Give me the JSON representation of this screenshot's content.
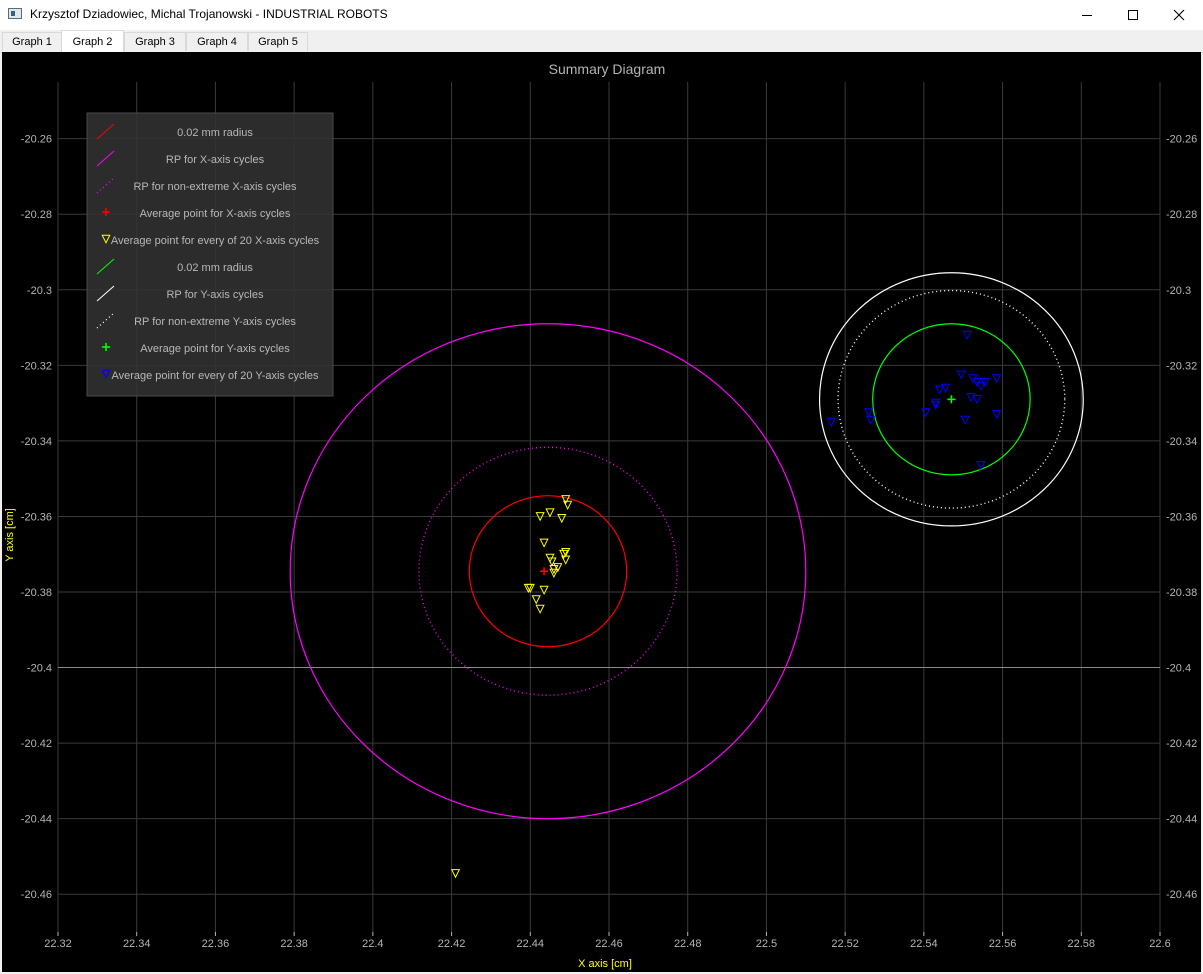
{
  "window": {
    "title": "Krzysztof Dziadowiec, Michal Trojanowski - INDUSTRIAL ROBOTS",
    "minimize_icon": "minimize-icon",
    "maximize_icon": "maximize-icon",
    "close_icon": "close-icon"
  },
  "tabs": [
    {
      "label": "Graph 1",
      "active": false
    },
    {
      "label": "Graph 2",
      "active": true
    },
    {
      "label": "Graph 3",
      "active": false
    },
    {
      "label": "Graph 4",
      "active": false
    },
    {
      "label": "Graph 5",
      "active": false
    }
  ],
  "chart_data": {
    "type": "scatter",
    "title": "Summary Diagram",
    "xlabel": "X axis [cm]",
    "ylabel": "Y axis [cm]",
    "xlim": [
      22.32,
      22.6
    ],
    "ylim": [
      -20.47,
      -20.245
    ],
    "x_ticks": [
      "22.32",
      "22.34",
      "22.36",
      "22.38",
      "22.4",
      "22.42",
      "22.44",
      "22.46",
      "22.48",
      "22.5",
      "22.52",
      "22.54",
      "22.56",
      "22.58",
      "22.6"
    ],
    "y_ticks": [
      "-20.26",
      "-20.28",
      "-20.3",
      "-20.32",
      "-20.34",
      "-20.36",
      "-20.38",
      "-20.4",
      "-20.42",
      "-20.44",
      "-20.46"
    ],
    "grid": true,
    "legend_position": "top-left",
    "background": "#000000",
    "colors": {
      "grid": "#3a3a3a",
      "grid_major_line": "#8a8a8a",
      "axis_text": "#b4b4b4",
      "axis_label": "#ffff00",
      "legend_bg": "#323232",
      "legend_text": "#b8b8b8"
    },
    "circles": [
      {
        "name": "0.02 mm radius",
        "center": [
          22.4445,
          -20.3745
        ],
        "radius": 0.02,
        "color": "#ff0000",
        "style": "solid"
      },
      {
        "name": "RP for X-axis cycles",
        "center": [
          22.4445,
          -20.3745
        ],
        "radius": 0.0655,
        "color": "#ff00ff",
        "style": "solid"
      },
      {
        "name": "RP for non-extreme X-axis cycles",
        "center": [
          22.4445,
          -20.3745
        ],
        "radius": 0.0328,
        "color": "#ff00ff",
        "style": "dotted"
      },
      {
        "name": "0.02 mm radius",
        "center": [
          22.547,
          -20.329
        ],
        "radius": 0.02,
        "color": "#00ff00",
        "style": "solid"
      },
      {
        "name": "RP for Y-axis cycles",
        "center": [
          22.547,
          -20.329
        ],
        "radius": 0.0335,
        "color": "#ffffff",
        "style": "solid"
      },
      {
        "name": "RP for non-extreme Y-axis cycles",
        "center": [
          22.547,
          -20.329
        ],
        "radius": 0.0288,
        "color": "#ffffff",
        "style": "dotted"
      }
    ],
    "series": [
      {
        "name": "Average point for X-axis cycles",
        "marker": "plus",
        "color": "#ff0000",
        "x": [
          22.4435
        ],
        "y": [
          -20.3745
        ]
      },
      {
        "name": "Average point for every of 20 X-axis cycles",
        "marker": "triangle-down",
        "color": "#ffff00",
        "x": [
          22.449,
          22.4495,
          22.4425,
          22.445,
          22.448,
          22.4435,
          22.449,
          22.4485,
          22.449,
          22.445,
          22.4455,
          22.447,
          22.446,
          22.446,
          22.4395,
          22.44,
          22.4435,
          22.4415,
          22.4425,
          22.421
        ],
        "y": [
          -20.3555,
          -20.357,
          -20.36,
          -20.359,
          -20.3605,
          -20.367,
          -20.3695,
          -20.37,
          -20.3715,
          -20.371,
          -20.372,
          -20.3735,
          -20.374,
          -20.375,
          -20.379,
          -20.379,
          -20.3795,
          -20.382,
          -20.3845,
          -20.4545
        ]
      },
      {
        "name": "0.02 mm radius",
        "marker": "none",
        "color": "#00ff00",
        "x": [],
        "y": []
      },
      {
        "name": "Average point for Y-axis cycles",
        "marker": "plus",
        "color": "#00ff00",
        "x": [
          22.547
        ],
        "y": [
          -20.329
        ]
      },
      {
        "name": "Average point for every of 20 Y-axis cycles",
        "marker": "triangle-down",
        "color": "#0000ff",
        "x": [
          22.551,
          22.5525,
          22.5495,
          22.5535,
          22.5555,
          22.5585,
          22.5455,
          22.544,
          22.5545,
          22.5535,
          22.552,
          22.543,
          22.5405,
          22.526,
          22.5265,
          22.5165,
          22.5505,
          22.5585,
          22.5545,
          22.543
        ],
        "y": [
          -20.312,
          -20.3235,
          -20.3225,
          -20.3245,
          -20.3245,
          -20.3235,
          -20.326,
          -20.3265,
          -20.3255,
          -20.329,
          -20.3285,
          -20.3305,
          -20.3325,
          -20.3325,
          -20.3345,
          -20.335,
          -20.3345,
          -20.333,
          -20.3465,
          -20.33
        ]
      }
    ],
    "legend": [
      {
        "label": "0.02 mm radius",
        "symbol": "line",
        "color": "#ff0000"
      },
      {
        "label": "RP for X-axis cycles",
        "symbol": "line",
        "color": "#ff00ff"
      },
      {
        "label": "RP for non-extreme X-axis cycles",
        "symbol": "dotted-line",
        "color": "#ff00ff"
      },
      {
        "label": "Average point for X-axis cycles",
        "symbol": "plus",
        "color": "#ff0000"
      },
      {
        "label": "Average point for every of 20 X-axis cycles",
        "symbol": "triangle-down",
        "color": "#ffff00"
      },
      {
        "label": "0.02 mm radius",
        "symbol": "line",
        "color": "#00ff00"
      },
      {
        "label": "RP for Y-axis cycles",
        "symbol": "line",
        "color": "#ffffff"
      },
      {
        "label": "RP for non-extreme Y-axis cycles",
        "symbol": "dotted-line",
        "color": "#ffffff"
      },
      {
        "label": "Average point for Y-axis cycles",
        "symbol": "plus",
        "color": "#00ff00"
      },
      {
        "label": "Average point for every of 20 Y-axis cycles",
        "symbol": "triangle-down",
        "color": "#0000ff"
      }
    ]
  }
}
